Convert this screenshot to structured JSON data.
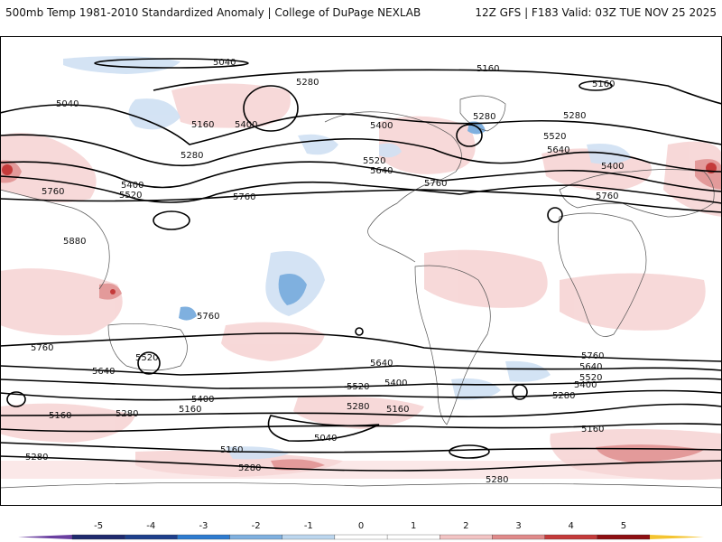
{
  "header": {
    "title": "500mb Temp 1981-2010 Standardized Anomaly | College of DuPage NEXLAB",
    "run_info": "12Z GFS | F183 Valid: 03Z TUE NOV 25 2025"
  },
  "map": {
    "contour_labels": [
      "5040",
      "5160",
      "5280",
      "5400",
      "5520",
      "5640",
      "5760",
      "5880"
    ],
    "label_instances": [
      {
        "text": "5040"
      },
      {
        "text": "5160"
      },
      {
        "text": "5160"
      },
      {
        "text": "5280"
      },
      {
        "text": "5280"
      },
      {
        "text": "5040"
      },
      {
        "text": "5160"
      },
      {
        "text": "5400"
      },
      {
        "text": "5280"
      },
      {
        "text": "5400"
      },
      {
        "text": "5520"
      },
      {
        "text": "5640"
      },
      {
        "text": "5400"
      },
      {
        "text": "5520"
      },
      {
        "text": "5760"
      },
      {
        "text": "5760"
      },
      {
        "text": "5760"
      },
      {
        "text": "5880"
      },
      {
        "text": "5400"
      },
      {
        "text": "5280"
      },
      {
        "text": "5760"
      },
      {
        "text": "5520"
      },
      {
        "text": "5640"
      },
      {
        "text": "5760"
      },
      {
        "text": "5640"
      },
      {
        "text": "5520"
      },
      {
        "text": "5400"
      },
      {
        "text": "5400"
      },
      {
        "text": "5280"
      },
      {
        "text": "5160"
      },
      {
        "text": "5280"
      },
      {
        "text": "5160"
      },
      {
        "text": "5160"
      },
      {
        "text": "5040"
      },
      {
        "text": "5160"
      },
      {
        "text": "5280"
      },
      {
        "text": "5280"
      },
      {
        "text": "5760"
      },
      {
        "text": "5640"
      },
      {
        "text": "5520"
      },
      {
        "text": "5400"
      },
      {
        "text": "5280"
      },
      {
        "text": "5160"
      },
      {
        "text": "5280"
      },
      {
        "text": "5760"
      },
      {
        "text": "5640"
      },
      {
        "text": "5520"
      }
    ]
  },
  "colorbar": {
    "ticks": [
      "-5",
      "-4",
      "-3",
      "-2",
      "-1",
      "0",
      "1",
      "2",
      "3",
      "4",
      "5"
    ],
    "colors": [
      "#1f2a6e",
      "#1e3f8c",
      "#2e7bcf",
      "#7fb0df",
      "#bcd6ee",
      "#ffffff",
      "#ffffff",
      "#f2c4c4",
      "#e08a8a",
      "#c43a3a",
      "#8e0f12"
    ],
    "underflow_color": "#6a3fa0",
    "overflow_color": "#f4c430"
  }
}
